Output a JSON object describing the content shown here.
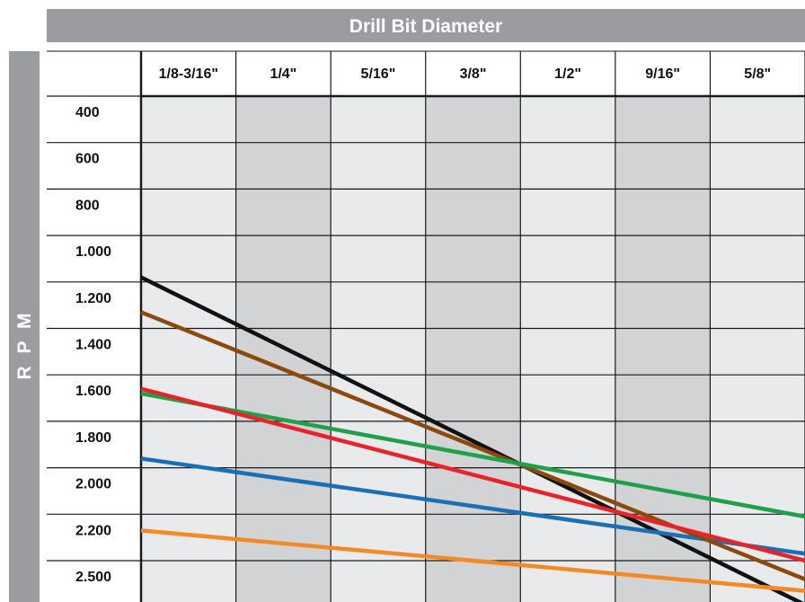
{
  "chart_data": {
    "type": "line",
    "title": "",
    "xlabel": "Drill Bit Diameter",
    "ylabel": "R P M",
    "categories": [
      "1/8-3/16\"",
      "1/4\"",
      "5/16\"",
      "3/8\"",
      "1/2\"",
      "9/16\"",
      "5/8\""
    ],
    "rpm_ticks": [
      "400",
      "600",
      "800",
      "1.000",
      "1.200",
      "1.400",
      "1.600",
      "1.800",
      "2.000",
      "2.200",
      "2.500"
    ],
    "grid": true,
    "series": [
      {
        "color": "#111111",
        "points": [
          [
            0,
            7.1
          ],
          [
            7,
            0.05
          ]
        ]
      },
      {
        "color": "#1a6fb5",
        "points": [
          [
            0,
            3.2
          ],
          [
            7,
            1.15
          ]
        ]
      },
      {
        "color": "#8a4a0e",
        "points": [
          [
            0,
            6.35
          ],
          [
            7,
            0.6
          ]
        ]
      },
      {
        "color": "#1fa14a",
        "points": [
          [
            0,
            4.6
          ],
          [
            7,
            1.95
          ]
        ]
      },
      {
        "color": "#e8242b",
        "points": [
          [
            0,
            4.7
          ],
          [
            7,
            1.0
          ]
        ]
      },
      {
        "color": "#f28a25",
        "points": [
          [
            0,
            1.65
          ],
          [
            7,
            0.35
          ]
        ]
      }
    ]
  },
  "colors": {
    "header_bg": "#9a9ca0",
    "band_light": "#e9eaeb",
    "band_dark": "#d2d3d5",
    "grid_line": "#1a1a1a"
  }
}
